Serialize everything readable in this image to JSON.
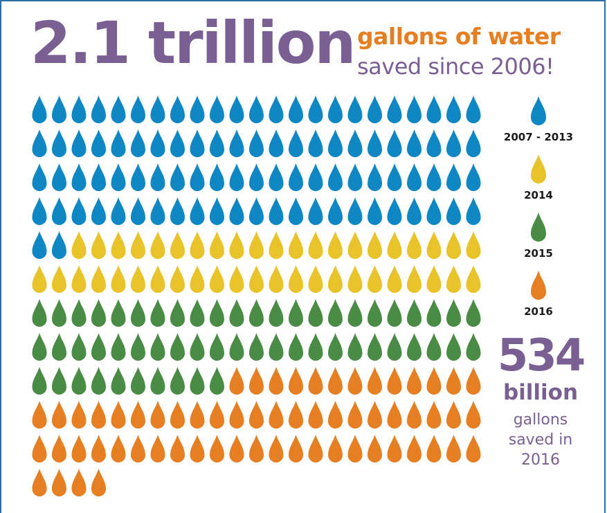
{
  "header": {
    "headline": "2.1 trillion",
    "sub_line1": "gallons of water",
    "sub_line2": "saved since 2006!"
  },
  "colors": {
    "c2007_2013": "#0f87c4",
    "c2014": "#e8c32a",
    "c2015": "#4a8c45",
    "c2016": "#e67e22",
    "purple": "#7a5f93"
  },
  "chart_data": {
    "type": "pictogram",
    "unit": "drop",
    "drops_per_row": 23,
    "series": [
      {
        "name": "2007 - 2013",
        "drops": 94,
        "color": "#0f87c4"
      },
      {
        "name": "2014",
        "drops": 44,
        "color": "#e8c32a"
      },
      {
        "name": "2015",
        "drops": 56,
        "color": "#4a8c45"
      },
      {
        "name": "2016",
        "drops": 63,
        "color": "#e67e22"
      }
    ]
  },
  "legend": [
    {
      "label": "2007 - 2013"
    },
    {
      "label": "2014"
    },
    {
      "label": "2015"
    },
    {
      "label": "2016"
    }
  ],
  "callout": {
    "number": "534",
    "unit": "billion",
    "caption_line1": "gallons",
    "caption_line2": "saved in",
    "caption_line3": "2016"
  }
}
